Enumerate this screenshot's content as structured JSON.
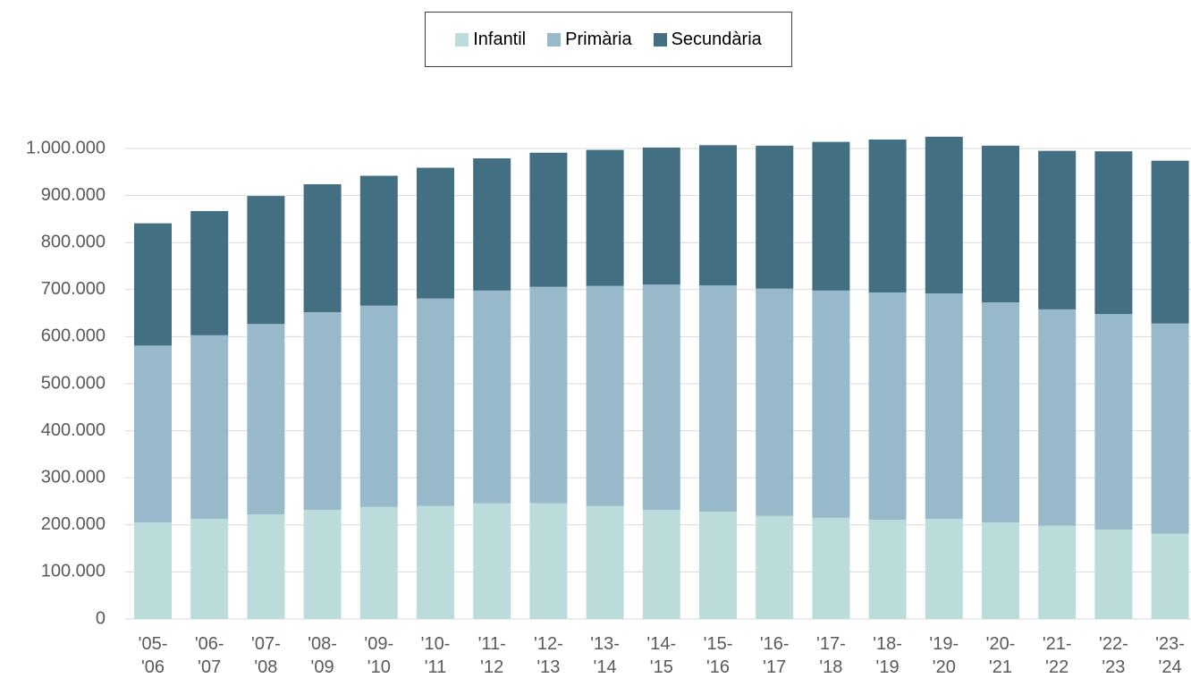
{
  "chart_data": {
    "type": "stacked_bar",
    "categories": [
      "'05- '06",
      "'06- '07",
      "'07- '08",
      "'08- '09",
      "'09- '10",
      "'10- '11",
      "'11- '12",
      "'12- '13",
      "'13- '14",
      "'14- '15",
      "'15- '16",
      "'16- '17",
      "'17- '18",
      "'18- '19",
      "'19- '20",
      "'20- '21",
      "'21- '22",
      "'22- '23",
      "'23- '24"
    ],
    "series": [
      {
        "name": "Infantil",
        "color": "#bcdcdc",
        "values": [
          205000,
          213000,
          222000,
          232000,
          238000,
          240000,
          246000,
          246000,
          240000,
          232000,
          228000,
          219000,
          215000,
          211000,
          213000,
          205000,
          198000,
          190000,
          181000
        ]
      },
      {
        "name": "Primària",
        "color": "#97b9c9",
        "values": [
          376000,
          390000,
          405000,
          420000,
          428000,
          441000,
          452000,
          460000,
          468000,
          479000,
          481000,
          483000,
          483000,
          483000,
          479000,
          468000,
          460000,
          458000,
          447000
        ]
      },
      {
        "name": "Secundària",
        "color": "#426f82",
        "values": [
          260000,
          264000,
          272000,
          272000,
          276000,
          278000,
          281000,
          285000,
          289000,
          291000,
          298000,
          304000,
          316000,
          325000,
          333000,
          333000,
          337000,
          346000,
          346000
        ]
      }
    ],
    "ylim": [
      0,
      1000000
    ],
    "yticks": [
      0,
      {
        "value": 100000,
        "label": "100.000"
      },
      {
        "value": 200000,
        "label": "200.000"
      },
      {
        "value": 300000,
        "label": "300.000"
      },
      {
        "value": 400000,
        "label": "400.000"
      },
      {
        "value": 500000,
        "label": "500.000"
      },
      {
        "value": 600000,
        "label": "600.000"
      },
      {
        "value": 700000,
        "label": "700.000"
      },
      {
        "value": 800000,
        "label": "800.000"
      },
      {
        "value": 900000,
        "label": "900.000"
      },
      {
        "value": 1000000,
        "label": "1.000.000"
      }
    ],
    "grid": true,
    "legend": "top"
  }
}
